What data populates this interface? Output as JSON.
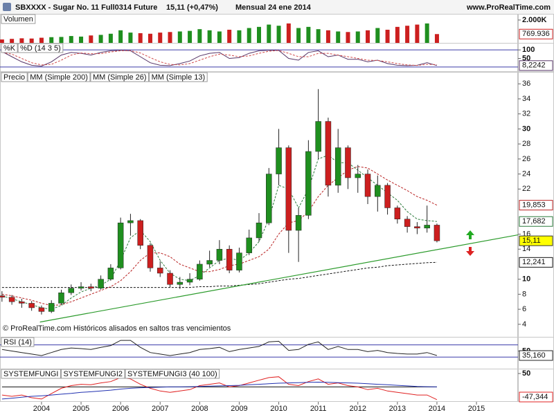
{
  "header": {
    "symbol": "SBXXXX - Sugar No. 11 Full0314 Future",
    "quote": "15,11 (+0,47%)",
    "period": "Mensual  24 ene 2014",
    "site": "www.ProRealTime.com"
  },
  "chart_data": [
    {
      "type": "bar",
      "title": "Volumen",
      "up_color": "#1f8f1f",
      "down_color": "#cc1f1f",
      "xlim": [
        2002.95,
        2016.05
      ],
      "x": [
        2003.0,
        2003.25,
        2003.5,
        2003.75,
        2004.0,
        2004.25,
        2004.5,
        2004.75,
        2005.0,
        2005.25,
        2005.5,
        2005.75,
        2006.0,
        2006.25,
        2006.5,
        2006.75,
        2007.0,
        2007.25,
        2007.5,
        2007.75,
        2008.0,
        2008.25,
        2008.5,
        2008.75,
        2009.0,
        2009.25,
        2009.5,
        2009.75,
        2010.0,
        2010.25,
        2010.5,
        2010.75,
        2011.0,
        2011.25,
        2011.5,
        2011.75,
        2012.0,
        2012.25,
        2012.5,
        2012.75,
        2013.0,
        2013.25,
        2013.5,
        2013.75,
        2014.0
      ],
      "values": [
        300000,
        350000,
        400000,
        380000,
        450000,
        500000,
        520000,
        600000,
        550000,
        650000,
        700000,
        800000,
        1100000,
        900000,
        850000,
        800000,
        900000,
        950000,
        1000000,
        1050000,
        1200000,
        1100000,
        1000000,
        1150000,
        1100000,
        1300000,
        1400000,
        1600000,
        1500000,
        1700000,
        1300000,
        1400000,
        1200000,
        1100000,
        1000000,
        950000,
        1000000,
        1100000,
        1300000,
        1150000,
        1400000,
        1500000,
        1600000,
        1700000,
        769936
      ],
      "ylim": [
        0,
        2420000
      ],
      "yticks": [
        {
          "value": 2000000,
          "label": "2.000K"
        }
      ],
      "last_values": [
        {
          "value": 769936,
          "label": "769.936",
          "color": "#cc1f1f"
        }
      ]
    },
    {
      "type": "line",
      "xlim": [
        2002.95,
        2016.05
      ],
      "x": [
        2003.0,
        2003.25,
        2003.5,
        2003.75,
        2004.0,
        2004.25,
        2004.5,
        2004.75,
        2005.0,
        2005.25,
        2005.5,
        2005.75,
        2006.0,
        2006.25,
        2006.5,
        2006.75,
        2007.0,
        2007.25,
        2007.5,
        2007.75,
        2008.0,
        2008.25,
        2008.5,
        2008.75,
        2009.0,
        2009.25,
        2009.5,
        2009.75,
        2010.0,
        2010.25,
        2010.5,
        2010.75,
        2011.0,
        2011.25,
        2011.5,
        2011.75,
        2012.0,
        2012.25,
        2012.5,
        2012.75,
        2013.0,
        2013.25,
        2013.5,
        2013.75,
        2014.0
      ],
      "series": [
        {
          "name": "%K",
          "color": "#553366",
          "values": [
            90,
            60,
            30,
            10,
            5,
            30,
            70,
            85,
            80,
            70,
            85,
            95,
            98,
            95,
            60,
            25,
            10,
            8,
            20,
            35,
            65,
            80,
            85,
            50,
            55,
            80,
            95,
            98,
            97,
            50,
            40,
            85,
            95,
            60,
            70,
            45,
            45,
            30,
            40,
            20,
            10,
            8,
            10,
            25,
            8.2242
          ]
        },
        {
          "name": "%D (14 3 5)",
          "color": "#d04848",
          "dashed": true,
          "values": [
            85,
            75,
            50,
            25,
            12,
            15,
            40,
            70,
            82,
            78,
            78,
            88,
            95,
            96,
            82,
            55,
            30,
            15,
            12,
            20,
            40,
            60,
            75,
            70,
            60,
            65,
            80,
            92,
            97,
            80,
            60,
            60,
            80,
            80,
            70,
            60,
            50,
            40,
            38,
            30,
            20,
            12,
            9,
            15,
            14
          ]
        }
      ],
      "ylim": [
        -25,
        133
      ],
      "yticks": [
        100,
        50
      ],
      "levels": [
        100,
        0
      ],
      "last_values": [
        {
          "value": 8.2242,
          "label": "8,2242",
          "color": "#553366"
        }
      ]
    },
    {
      "type": "candlestick",
      "title": "Precio",
      "up_color": "#1f8f1f",
      "down_color": "#cc1f1f",
      "note": "© ProRealTime.com  Históricos alisados en saltos tras vencimientos",
      "xlim": [
        2002.95,
        2016.05
      ],
      "xticks": [
        2004,
        2005,
        2006,
        2007,
        2008,
        2009,
        2010,
        2011,
        2012,
        2013,
        2014,
        2015
      ],
      "x": [
        2003.0,
        2003.25,
        2003.5,
        2003.75,
        2004.0,
        2004.25,
        2004.5,
        2004.75,
        2005.0,
        2005.25,
        2005.5,
        2005.75,
        2006.0,
        2006.25,
        2006.5,
        2006.75,
        2007.0,
        2007.25,
        2007.5,
        2007.75,
        2008.0,
        2008.25,
        2008.5,
        2008.75,
        2009.0,
        2009.25,
        2009.5,
        2009.75,
        2010.0,
        2010.25,
        2010.5,
        2010.75,
        2011.0,
        2011.25,
        2011.5,
        2011.75,
        2012.0,
        2012.25,
        2012.5,
        2012.75,
        2013.0,
        2013.25,
        2013.5,
        2013.75,
        2014.0
      ],
      "open": [
        7.8,
        7.6,
        7.0,
        6.8,
        6.2,
        5.7,
        6.8,
        8.2,
        8.8,
        9.0,
        8.8,
        10.0,
        11.5,
        17.5,
        17.8,
        14.5,
        11.5,
        10.8,
        9.3,
        9.6,
        10.0,
        12.0,
        12.5,
        14.0,
        11.2,
        13.5,
        15.5,
        17.5,
        24.0,
        27.5,
        16.5,
        18.5,
        27.0,
        31.0,
        22.5,
        27.5,
        23.5,
        24.0,
        21.0,
        22.5,
        19.5,
        18.0,
        17.0,
        16.8,
        17.2
      ],
      "high": [
        8.4,
        7.9,
        7.4,
        7.1,
        6.5,
        7.2,
        8.6,
        9.3,
        9.6,
        9.4,
        10.5,
        12.0,
        18.2,
        18.7,
        18.0,
        14.8,
        12.4,
        11.2,
        10.3,
        10.8,
        12.5,
        13.8,
        15.2,
        14.5,
        14.2,
        16.6,
        18.8,
        24.8,
        30.0,
        27.8,
        19.5,
        28.5,
        35.3,
        31.5,
        30.0,
        27.8,
        25.2,
        24.6,
        23.8,
        22.8,
        19.8,
        18.4,
        17.6,
        19.8,
        17.4
      ],
      "low": [
        7.0,
        6.6,
        6.2,
        5.8,
        5.3,
        5.5,
        6.6,
        7.9,
        8.5,
        8.4,
        8.6,
        9.8,
        11.3,
        15.8,
        14.0,
        11.0,
        10.3,
        8.9,
        8.7,
        9.2,
        9.8,
        11.6,
        12.0,
        10.8,
        10.9,
        13.2,
        15.0,
        17.2,
        22.5,
        13.5,
        12.3,
        18.0,
        26.0,
        21.0,
        21.5,
        22.0,
        21.5,
        20.0,
        19.0,
        18.6,
        17.4,
        16.2,
        16.0,
        16.2,
        14.9
      ],
      "close": [
        7.6,
        7.0,
        6.8,
        6.2,
        5.7,
        6.8,
        8.2,
        8.8,
        9.0,
        8.8,
        10.0,
        11.5,
        17.5,
        17.8,
        14.5,
        11.5,
        10.8,
        9.3,
        9.6,
        10.0,
        12.0,
        12.5,
        14.0,
        11.2,
        13.5,
        15.5,
        17.5,
        24.0,
        27.5,
        16.5,
        18.5,
        27.0,
        31.0,
        22.5,
        27.5,
        23.5,
        24.0,
        21.0,
        22.5,
        19.5,
        18.0,
        17.0,
        16.8,
        17.2,
        15.11
      ],
      "series": [
        {
          "name": "MM (Simple 200)",
          "color": "#111111",
          "dashed": true,
          "values": [
            8.9,
            8.9,
            8.9,
            8.9,
            8.9,
            8.9,
            8.9,
            8.9,
            8.9,
            8.9,
            8.9,
            8.9,
            8.9,
            8.9,
            8.9,
            8.9,
            8.9,
            8.9,
            8.9,
            8.9,
            9.0,
            9.0,
            9.1,
            9.1,
            9.2,
            9.3,
            9.4,
            9.6,
            9.8,
            10.0,
            10.1,
            10.3,
            10.5,
            10.7,
            10.9,
            11.1,
            11.3,
            11.5,
            11.6,
            11.8,
            11.9,
            12.0,
            12.1,
            12.2,
            12.241
          ]
        },
        {
          "name": "MM (Simple 26)",
          "color": "#b82020",
          "dashed": true,
          "values": [
            8.0,
            7.8,
            7.5,
            7.2,
            6.8,
            6.5,
            6.6,
            7.0,
            7.5,
            8.0,
            8.5,
            9.0,
            9.8,
            11.0,
            12.5,
            13.5,
            13.5,
            13.0,
            12.0,
            11.5,
            11.0,
            11.0,
            11.3,
            11.8,
            12.0,
            12.5,
            13.0,
            14.0,
            16.0,
            17.5,
            17.8,
            19.0,
            21.0,
            22.5,
            23.5,
            24.5,
            25.0,
            24.8,
            24.0,
            23.2,
            22.5,
            21.8,
            21.0,
            20.5,
            19.853
          ]
        },
        {
          "name": "MM (Simple 13)",
          "color": "#2a7a3a",
          "dashed": true,
          "values": [
            7.8,
            7.4,
            7.0,
            6.6,
            6.2,
            6.0,
            6.5,
            7.5,
            8.3,
            8.8,
            9.2,
            10.0,
            12.5,
            15.5,
            16.5,
            15.0,
            12.5,
            10.8,
            10.0,
            9.8,
            10.5,
            11.5,
            12.5,
            12.8,
            12.5,
            13.5,
            15.0,
            18.0,
            22.5,
            22.0,
            19.5,
            22.0,
            26.0,
            26.5,
            25.5,
            25.5,
            24.5,
            23.5,
            22.5,
            21.5,
            20.5,
            19.0,
            18.0,
            17.8,
            17.682
          ]
        }
      ],
      "trendline": {
        "x": [
          2003.96,
          2016.05
        ],
        "values": [
          4.3,
          15.9
        ],
        "color": "#2a9a2a"
      },
      "ylim": [
        2.33,
        37.4
      ],
      "yticks": [
        4,
        6,
        8,
        10,
        14,
        16,
        22,
        24,
        26,
        28,
        30,
        32,
        34,
        36
      ],
      "last_values": [
        {
          "value": 19.853,
          "label": "19,853",
          "color": "#b82020"
        },
        {
          "value": 17.682,
          "label": "17,682",
          "color": "#2a7a3a"
        },
        {
          "value": 15.11,
          "label": "15,11",
          "color": "#333333",
          "fill": "#ffff00"
        },
        {
          "value": 12.241,
          "label": "12,241",
          "color": "#111111"
        }
      ]
    },
    {
      "type": "line",
      "xlim": [
        2002.95,
        2016.05
      ],
      "x": [
        2003.0,
        2003.25,
        2003.5,
        2003.75,
        2004.0,
        2004.25,
        2004.5,
        2004.75,
        2005.0,
        2005.25,
        2005.5,
        2005.75,
        2006.0,
        2006.25,
        2006.5,
        2006.75,
        2007.0,
        2007.25,
        2007.5,
        2007.75,
        2008.0,
        2008.25,
        2008.5,
        2008.75,
        2009.0,
        2009.25,
        2009.5,
        2009.75,
        2010.0,
        2010.25,
        2010.5,
        2010.75,
        2011.0,
        2011.25,
        2011.5,
        2011.75,
        2012.0,
        2012.25,
        2012.5,
        2012.75,
        2013.0,
        2013.25,
        2013.5,
        2013.75,
        2014.0
      ],
      "series": [
        {
          "name": "RSI (14)",
          "color": "#222222",
          "values": [
            55,
            50,
            45,
            40,
            35,
            45,
            55,
            60,
            58,
            55,
            62,
            68,
            85,
            85,
            62,
            45,
            40,
            35,
            40,
            45,
            55,
            58,
            62,
            48,
            55,
            60,
            65,
            80,
            82,
            52,
            55,
            72,
            80,
            55,
            65,
            55,
            55,
            48,
            52,
            45,
            42,
            40,
            40,
            45,
            35.16
          ]
        }
      ],
      "ylim": [
        -8,
        92
      ],
      "yticks": [
        50
      ],
      "levels": [
        70,
        30
      ],
      "last_values": [
        {
          "value": 35.16,
          "label": "35,160",
          "color": "#222222"
        }
      ]
    },
    {
      "type": "line",
      "xlim": [
        2002.95,
        2016.05
      ],
      "x": [
        2003.0,
        2003.25,
        2003.5,
        2003.75,
        2004.0,
        2004.25,
        2004.5,
        2004.75,
        2005.0,
        2005.25,
        2005.5,
        2005.75,
        2006.0,
        2006.25,
        2006.5,
        2006.75,
        2007.0,
        2007.25,
        2007.5,
        2007.75,
        2008.0,
        2008.25,
        2008.5,
        2008.75,
        2009.0,
        2009.25,
        2009.5,
        2009.75,
        2010.0,
        2010.25,
        2010.5,
        2010.75,
        2011.0,
        2011.25,
        2011.5,
        2011.75,
        2012.0,
        2012.25,
        2012.5,
        2012.75,
        2013.0,
        2013.25,
        2013.5,
        2013.75,
        2014.0
      ],
      "series": [
        {
          "name": "SYSTEMFUNGI",
          "color": "#111111",
          "values": [
            0,
            0,
            0,
            0,
            0,
            0,
            0,
            0,
            0,
            0,
            0,
            0,
            0,
            0,
            0,
            0,
            0,
            0,
            0,
            0,
            0,
            0,
            0,
            0,
            0,
            0,
            0,
            0,
            0,
            0,
            0,
            0,
            0,
            0,
            0,
            0,
            0,
            0,
            0,
            0,
            0,
            0,
            0,
            0,
            0
          ]
        },
        {
          "name": "SYSTEMFUNGI2",
          "color": "#e02020",
          "values": [
            -30,
            -35,
            -30,
            -40,
            -45,
            -25,
            -5,
            5,
            10,
            8,
            15,
            20,
            35,
            30,
            10,
            -5,
            -15,
            -20,
            -15,
            -10,
            5,
            10,
            15,
            0,
            5,
            15,
            25,
            35,
            38,
            10,
            5,
            20,
            30,
            10,
            15,
            5,
            0,
            -10,
            -5,
            -15,
            -20,
            -25,
            -30,
            -30,
            -47.344
          ]
        },
        {
          "name": "SYSTEMFUNGI3 (40 100)",
          "color": "#2030b0",
          "values": [
            -45,
            -42,
            -38,
            -35,
            -33,
            -30,
            -27,
            -24,
            -20,
            -18,
            -15,
            -12,
            -8,
            -5,
            -3,
            -2,
            -1,
            0,
            0,
            1,
            2,
            3,
            4,
            5,
            6,
            8,
            10,
            12,
            14,
            15,
            16,
            17,
            18,
            17,
            16,
            15,
            14,
            12,
            10,
            8,
            6,
            4,
            2,
            1,
            0
          ]
        }
      ],
      "ylim": [
        -53,
        63
      ],
      "yticks": [
        50
      ],
      "last_values": [
        {
          "value": -47.344,
          "label": "-47,344",
          "color": "#e02020"
        }
      ]
    }
  ]
}
